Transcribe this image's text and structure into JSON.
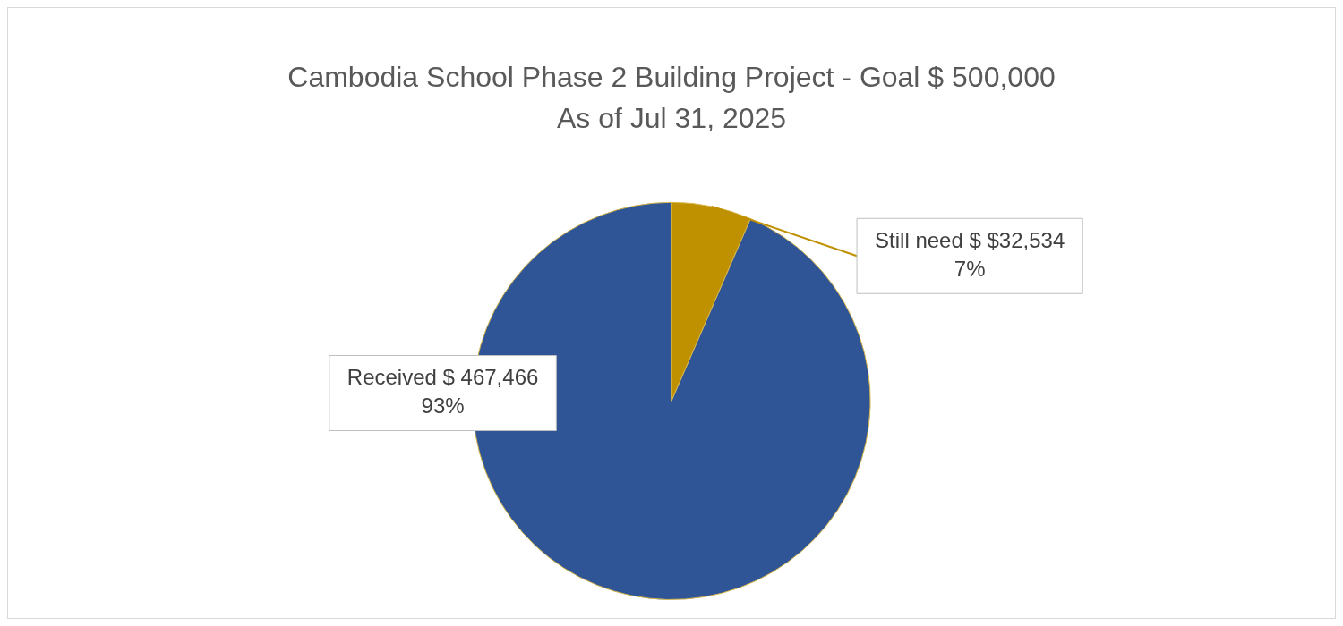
{
  "chart_data": {
    "type": "pie",
    "title": "Cambodia School Phase 2 Building Project - Goal $ 500,000",
    "subtitle": "As of Jul 31, 2025",
    "categories": [
      "Still need",
      "Received"
    ],
    "values": [
      32534,
      467466
    ],
    "colors": [
      "#bf9000",
      "#2f5597"
    ],
    "value_labels": [
      "$ $32,534\n7%",
      "$ 467,466\n93%"
    ],
    "legend": false
  }
}
